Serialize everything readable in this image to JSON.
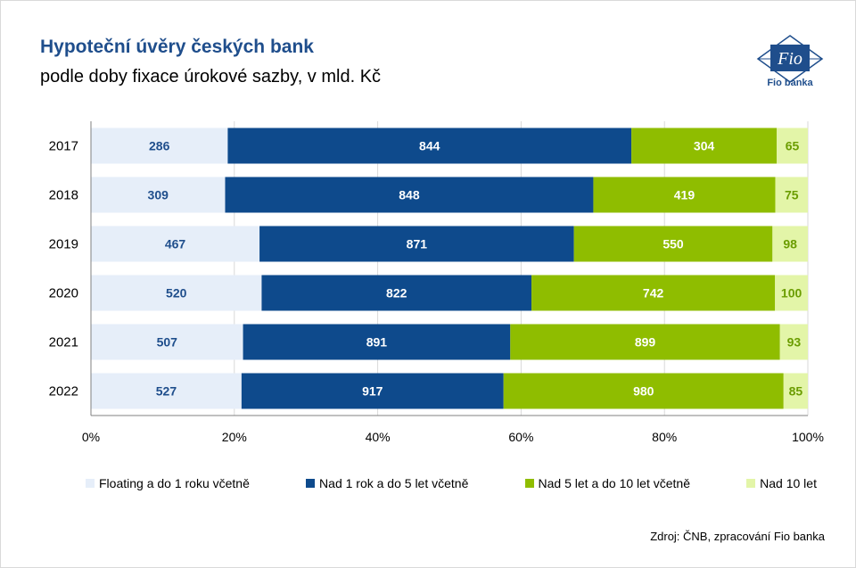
{
  "header": {
    "title": "Hypoteční úvěry českých bank",
    "subtitle": "podle doby fixace úrokové sazby, v mld. Kč"
  },
  "logo": {
    "text": "Fio",
    "caption": "Fio banka"
  },
  "source": "Zdroj: ČNB, zpracování Fio banka",
  "chart_data": {
    "type": "bar",
    "orientation": "horizontal",
    "stacked": "percent",
    "categories": [
      "2017",
      "2018",
      "2019",
      "2020",
      "2021",
      "2022"
    ],
    "series": [
      {
        "name": "Floating a do 1 roku včetně",
        "color": "#e6eef9",
        "label_color": "#1f4e8c",
        "values": [
          286,
          309,
          467,
          520,
          507,
          527
        ]
      },
      {
        "name": "Nad 1 rok a do 5 let včetně",
        "color": "#0e4a8c",
        "label_color": "#ffffff",
        "values": [
          844,
          848,
          871,
          822,
          891,
          917
        ]
      },
      {
        "name": "Nad 5 let a do 10 let včetně",
        "color": "#8fbd00",
        "label_color": "#ffffff",
        "values": [
          304,
          419,
          550,
          742,
          899,
          980
        ]
      },
      {
        "name": "Nad 10 let",
        "color": "#e3f5a8",
        "label_color": "#6b9d00",
        "values": [
          65,
          75,
          98,
          100,
          93,
          85
        ]
      }
    ],
    "x_ticks": [
      "0%",
      "20%",
      "40%",
      "60%",
      "80%",
      "100%"
    ],
    "xlim": [
      0,
      100
    ],
    "grid": true,
    "legend_position": "bottom"
  }
}
